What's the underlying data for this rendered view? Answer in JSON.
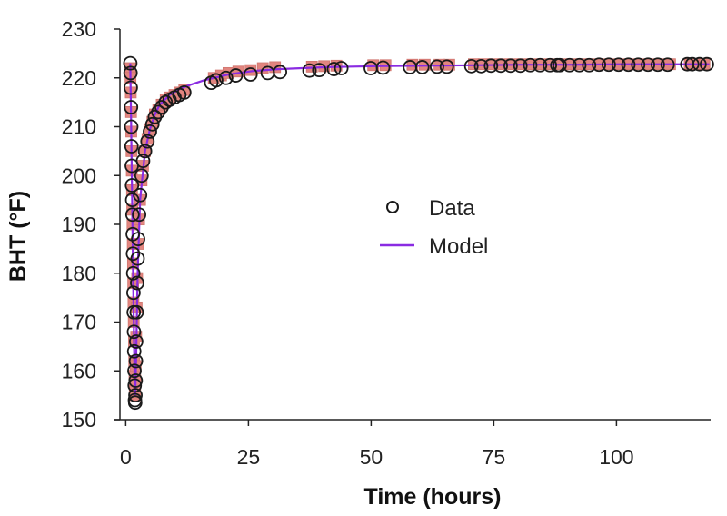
{
  "chart_data": {
    "type": "scatter",
    "xlabel": "Time (hours)",
    "ylabel": "BHT (°F)",
    "xlim": [
      -1,
      119
    ],
    "ylim": [
      150,
      230
    ],
    "x_ticks": [
      0,
      25,
      50,
      75,
      100
    ],
    "y_ticks": [
      150,
      160,
      170,
      180,
      190,
      200,
      210,
      220,
      230
    ],
    "grid": false,
    "legend_position": "center-right",
    "series": [
      {
        "name": "Data",
        "kind": "markers",
        "marker": "open-circle",
        "color": "#1a1a1a",
        "x": [
          0.0,
          0.05,
          0.1,
          0.15,
          0.2,
          0.25,
          0.3,
          0.35,
          0.4,
          0.45,
          0.5,
          0.55,
          0.6,
          0.65,
          0.7,
          0.75,
          0.8,
          0.85,
          0.9,
          0.95,
          1.0,
          1.05,
          1.1,
          1.15,
          1.2,
          1.3,
          1.4,
          1.5,
          1.6,
          1.8,
          2.0,
          2.3,
          2.6,
          3.0,
          3.5,
          4.0,
          4.5,
          5.0,
          5.7,
          6.4,
          7.2,
          8.0,
          9.0,
          10.0,
          11.0,
          16.5,
          17.5,
          19.5,
          21.5,
          24.5,
          28.0,
          30.5,
          36.5,
          38.5,
          41.5,
          43.0,
          49.0,
          51.5,
          57.0,
          59.5,
          62.5,
          64.5,
          69.5,
          71.5,
          73.5,
          75.5,
          77.5,
          79.5,
          81.5,
          83.5,
          85.5,
          87.0,
          87.5,
          89.5,
          91.5,
          93.5,
          95.5,
          97.5,
          99.5,
          101.5,
          103.5,
          105.5,
          107.5,
          109.5,
          113.5,
          114.5,
          116.0,
          117.5
        ],
        "y": [
          223,
          221,
          218,
          214,
          210,
          206,
          202,
          198,
          195,
          192,
          188,
          184,
          180,
          176,
          172,
          168,
          164,
          160,
          157,
          154,
          153.5,
          155,
          158,
          162,
          166,
          172,
          178,
          183,
          187,
          192,
          196,
          200,
          203,
          205,
          207,
          209,
          210.5,
          212,
          213,
          214,
          215,
          215.5,
          216,
          216.5,
          217,
          219,
          219.5,
          220,
          220.5,
          220.7,
          221,
          221.2,
          221.5,
          221.6,
          221.8,
          222,
          222,
          222.1,
          222.2,
          222.2,
          222.3,
          222.3,
          222.4,
          222.4,
          222.5,
          222.5,
          222.5,
          222.5,
          222.6,
          222.6,
          222.6,
          222.6,
          222.6,
          222.6,
          222.6,
          222.6,
          222.7,
          222.7,
          222.7,
          222.7,
          222.7,
          222.7,
          222.7,
          222.7,
          222.8,
          222.8,
          222.8,
          222.8
        ]
      },
      {
        "name": "",
        "kind": "markers",
        "marker": "filled-square",
        "color": "#e2857f",
        "x": [
          0.0,
          0.05,
          0.1,
          0.15,
          0.2,
          0.25,
          0.3,
          0.35,
          0.4,
          0.45,
          0.5,
          0.55,
          0.6,
          0.65,
          0.7,
          0.75,
          0.8,
          0.85,
          0.9,
          0.95,
          1.0,
          1.05,
          1.1,
          1.2,
          1.3,
          1.4,
          1.6,
          1.8,
          2.0,
          2.3,
          2.6,
          3.0,
          3.5,
          4.0,
          4.5,
          5.0,
          5.7,
          6.4,
          7.2,
          8.0,
          9.0,
          10.0,
          11.0,
          17.0,
          18.5,
          20.0,
          22.0,
          24.5,
          27.0,
          29.5,
          37.0,
          39.5,
          42.0,
          49.5,
          52.0,
          57.5,
          60.0,
          63.0,
          65.0,
          70.0,
          72.0,
          74.0,
          76.0,
          78.0,
          80.0,
          82.0,
          84.0,
          86.0,
          88.0,
          90.0,
          92.0,
          94.0,
          96.0,
          98.0,
          100.0,
          102.0,
          104.0,
          106.0,
          108.0,
          110.0,
          114.0,
          115.5,
          117.0
        ],
        "y": [
          222,
          220,
          217,
          213,
          209,
          205,
          201,
          197,
          193,
          190,
          186,
          182,
          178,
          174,
          170,
          166,
          162,
          159,
          156,
          155,
          156,
          158,
          161,
          167,
          173,
          179,
          186,
          191,
          195,
          199,
          202,
          205,
          207.5,
          209.5,
          211,
          212.5,
          213.5,
          214.5,
          215.5,
          216,
          216.5,
          217,
          217.5,
          220,
          220.5,
          221,
          221.3,
          221.6,
          222,
          222.2,
          222.3,
          222.4,
          222.5,
          222.6,
          222.6,
          222.7,
          222.7,
          222.7,
          222.7,
          222.8,
          222.8,
          222.8,
          222.8,
          222.8,
          222.8,
          222.8,
          222.8,
          222.8,
          222.8,
          222.8,
          222.8,
          222.8,
          222.8,
          222.8,
          222.8,
          222.8,
          222.8,
          222.8,
          222.8,
          222.8,
          222.8,
          222.8,
          222.8
        ]
      },
      {
        "name": "Model",
        "kind": "line",
        "color": "#8a2be2",
        "x": [
          0,
          0.3,
          0.6,
          0.9,
          1.0,
          1.2,
          1.5,
          2.0,
          3.0,
          4.0,
          5.0,
          6.0,
          8.0,
          10.0,
          12.0,
          15.0,
          20.0,
          25.0,
          30.0,
          40.0,
          50.0,
          60.0,
          70.0,
          80.0,
          90.0,
          100.0,
          110.0,
          118.0
        ],
        "y": [
          223,
          201,
          178,
          156,
          155,
          163,
          180,
          195,
          205,
          209.5,
          212.5,
          214.5,
          216.5,
          217.7,
          218.5,
          219.5,
          220.7,
          221.4,
          221.8,
          222.2,
          222.4,
          222.5,
          222.6,
          222.7,
          222.7,
          222.8,
          222.8,
          222.8
        ]
      }
    ]
  }
}
